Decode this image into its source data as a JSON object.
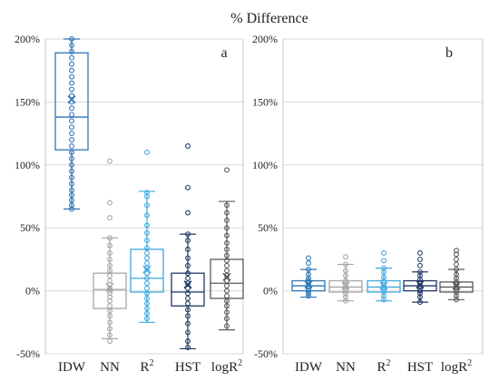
{
  "title": "% Difference",
  "y_ticks": [
    "200%",
    "150%",
    "100%",
    "50%",
    "0%",
    "-50%"
  ],
  "chart_data": [
    {
      "type": "box",
      "panel_label": "a",
      "ylim": [
        -0.5,
        2.0
      ],
      "y_tick_values": [
        -0.5,
        0,
        0.5,
        1.0,
        1.5,
        2.0
      ],
      "categories": [
        "IDW",
        "NN",
        "R",
        "HST",
        "logR"
      ],
      "category_superscripts": [
        "",
        "",
        "2",
        "",
        "2"
      ],
      "grid": true,
      "series": [
        {
          "category": "IDW",
          "color": "#2e75b6",
          "whisker_low": 0.65,
          "q1": 1.12,
          "median": 1.38,
          "q3": 1.89,
          "whisker_high": 2.02,
          "mean": 1.52,
          "points": [
            0.65,
            0.68,
            0.72,
            0.76,
            0.8,
            0.85,
            0.9,
            0.95,
            1.0,
            1.05,
            1.1,
            1.15,
            1.2,
            1.25,
            1.3,
            1.35,
            1.4,
            1.45,
            1.5,
            1.55,
            1.6,
            1.65,
            1.7,
            1.75,
            1.8,
            1.85,
            1.9,
            1.95,
            2.0
          ]
        },
        {
          "category": "NN",
          "color": "#a6a6a6",
          "whisker_low": -0.38,
          "q1": -0.14,
          "median": 0.01,
          "q3": 0.14,
          "whisker_high": 0.42,
          "mean": 0.03,
          "points": [
            -0.4,
            -0.35,
            -0.3,
            -0.25,
            -0.2,
            -0.16,
            -0.12,
            -0.08,
            -0.05,
            -0.02,
            0.0,
            0.02,
            0.05,
            0.08,
            0.12,
            0.16,
            0.2,
            0.25,
            0.3,
            0.36,
            0.42,
            0.58,
            0.7,
            1.03
          ]
        },
        {
          "category": "R2",
          "color": "#3fa9e0",
          "whisker_low": -0.25,
          "q1": -0.01,
          "median": 0.1,
          "q3": 0.33,
          "whisker_high": 0.79,
          "mean": 0.17,
          "points": [
            -0.22,
            -0.18,
            -0.14,
            -0.1,
            -0.06,
            -0.02,
            0.02,
            0.06,
            0.1,
            0.14,
            0.18,
            0.22,
            0.26,
            0.3,
            0.34,
            0.4,
            0.46,
            0.52,
            0.6,
            0.68,
            0.75,
            0.78,
            1.1
          ]
        },
        {
          "category": "HST",
          "color": "#1f3864",
          "whisker_low": -0.46,
          "q1": -0.12,
          "median": -0.01,
          "q3": 0.14,
          "whisker_high": 0.45,
          "mean": 0.05,
          "points": [
            -0.45,
            -0.4,
            -0.33,
            -0.26,
            -0.2,
            -0.15,
            -0.1,
            -0.06,
            -0.02,
            0.02,
            0.06,
            0.1,
            0.14,
            0.2,
            0.26,
            0.33,
            0.4,
            0.45,
            0.62,
            0.82,
            1.15
          ]
        },
        {
          "category": "logR2",
          "color": "#595959",
          "whisker_low": -0.31,
          "q1": -0.06,
          "median": 0.06,
          "q3": 0.25,
          "whisker_high": 0.71,
          "mean": 0.11,
          "points": [
            -0.28,
            -0.22,
            -0.17,
            -0.12,
            -0.08,
            -0.04,
            0.0,
            0.04,
            0.08,
            0.12,
            0.16,
            0.2,
            0.24,
            0.28,
            0.33,
            0.38,
            0.44,
            0.5,
            0.56,
            0.62,
            0.68,
            0.96
          ]
        }
      ]
    },
    {
      "type": "box",
      "panel_label": "b",
      "ylim": [
        -0.5,
        2.0
      ],
      "y_tick_values": [
        -0.5,
        0,
        0.5,
        1.0,
        1.5,
        2.0
      ],
      "categories": [
        "IDW",
        "NN",
        "R",
        "HST",
        "logR"
      ],
      "category_superscripts": [
        "",
        "",
        "2",
        "",
        "2"
      ],
      "grid": true,
      "series": [
        {
          "category": "IDW",
          "color": "#2e75b6",
          "whisker_low": -0.05,
          "q1": 0.0,
          "median": 0.04,
          "q3": 0.08,
          "whisker_high": 0.17,
          "mean": 0.05,
          "points": [
            -0.04,
            -0.02,
            0.0,
            0.02,
            0.04,
            0.06,
            0.08,
            0.1,
            0.13,
            0.17,
            0.22,
            0.26
          ]
        },
        {
          "category": "NN",
          "color": "#a6a6a6",
          "whisker_low": -0.08,
          "q1": -0.01,
          "median": 0.03,
          "q3": 0.08,
          "whisker_high": 0.21,
          "mean": 0.04,
          "points": [
            -0.08,
            -0.05,
            -0.02,
            0.0,
            0.02,
            0.04,
            0.06,
            0.08,
            0.12,
            0.16,
            0.21,
            0.27
          ]
        },
        {
          "category": "R2",
          "color": "#3fa9e0",
          "whisker_low": -0.08,
          "q1": -0.01,
          "median": 0.03,
          "q3": 0.08,
          "whisker_high": 0.18,
          "mean": 0.04,
          "points": [
            -0.07,
            -0.04,
            -0.01,
            0.01,
            0.03,
            0.05,
            0.08,
            0.11,
            0.15,
            0.18,
            0.24,
            0.3
          ]
        },
        {
          "category": "HST",
          "color": "#1f3864",
          "whisker_low": -0.09,
          "q1": 0.0,
          "median": 0.04,
          "q3": 0.08,
          "whisker_high": 0.15,
          "mean": 0.05,
          "points": [
            -0.09,
            -0.05,
            -0.02,
            0.0,
            0.02,
            0.04,
            0.06,
            0.09,
            0.12,
            0.15,
            0.2,
            0.25,
            0.3
          ]
        },
        {
          "category": "logR2",
          "color": "#595959",
          "whisker_low": -0.07,
          "q1": -0.01,
          "median": 0.03,
          "q3": 0.07,
          "whisker_high": 0.17,
          "mean": 0.04,
          "points": [
            -0.07,
            -0.04,
            -0.01,
            0.01,
            0.03,
            0.05,
            0.07,
            0.1,
            0.13,
            0.17,
            0.21,
            0.25,
            0.29,
            0.32
          ]
        }
      ]
    }
  ]
}
